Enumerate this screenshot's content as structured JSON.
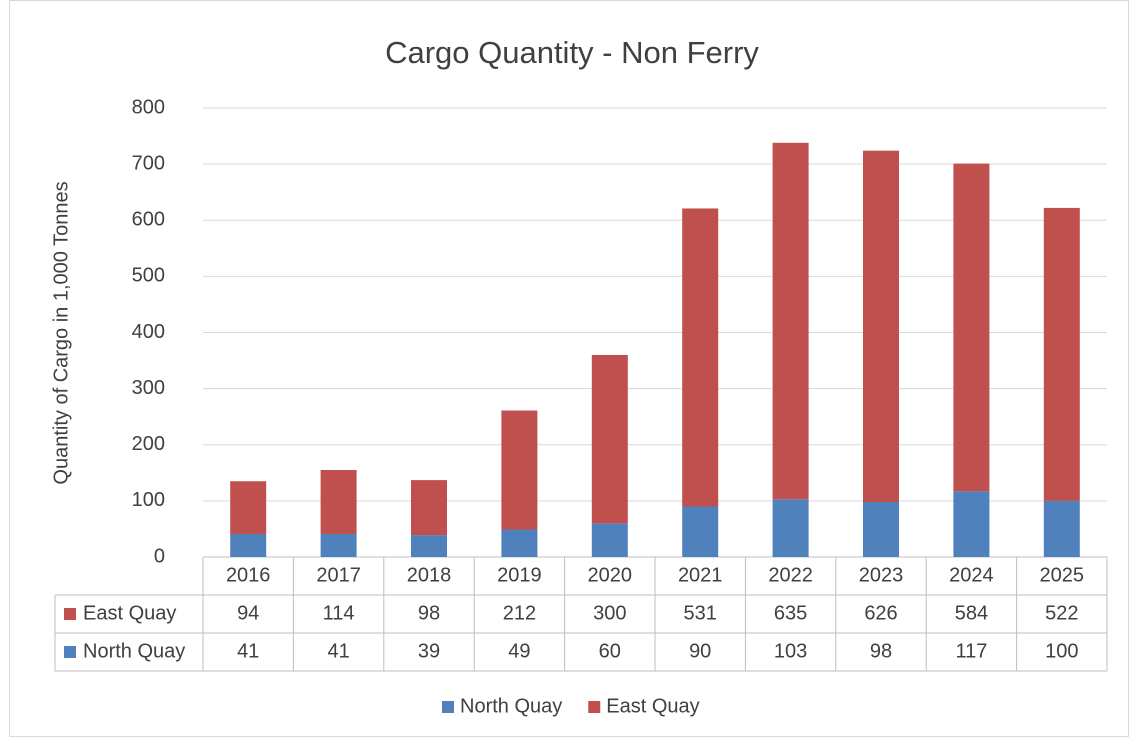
{
  "chart_data": {
    "type": "stacked_bar",
    "title": "Cargo Quantity - Non Ferry",
    "y_label": "Quantity of Cargo in 1,000 Tonnes",
    "categories": [
      "2016",
      "2017",
      "2018",
      "2019",
      "2020",
      "2021",
      "2022",
      "2023",
      "2024",
      "2025"
    ],
    "series": [
      {
        "name": "North Quay",
        "color": "#4f81bd",
        "values": [
          41,
          41,
          39,
          49,
          60,
          90,
          103,
          98,
          117,
          100
        ]
      },
      {
        "name": "East Quay",
        "color": "#c0504d",
        "values": [
          94,
          114,
          98,
          212,
          300,
          531,
          635,
          626,
          584,
          522
        ]
      }
    ],
    "ylim": [
      0,
      800
    ],
    "yticks": [
      0,
      100,
      200,
      300,
      400,
      500,
      600,
      700,
      800
    ],
    "grid": true,
    "legend": "bottom"
  }
}
